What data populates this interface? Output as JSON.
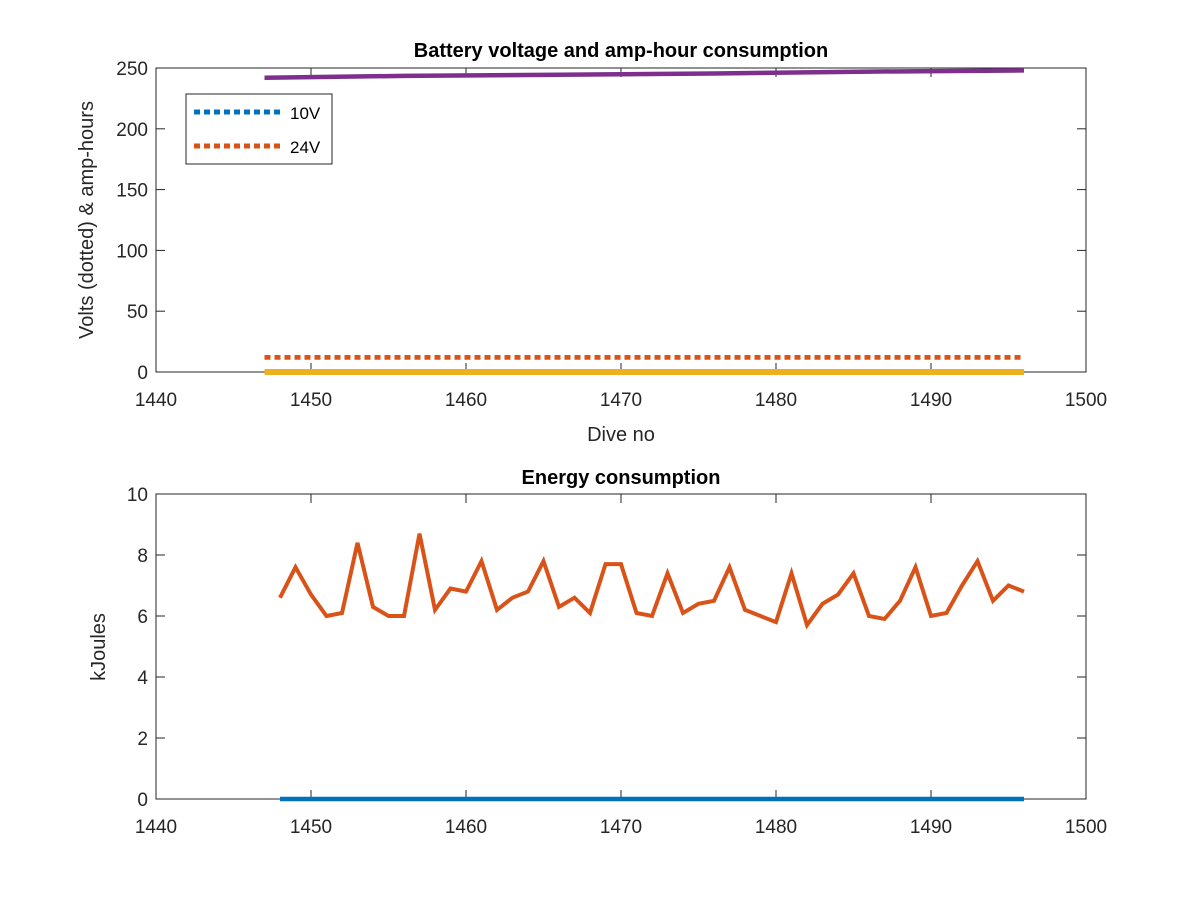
{
  "chart_data": [
    {
      "type": "line",
      "title": "Battery voltage and amp-hour consumption",
      "xlabel": "Dive no",
      "ylabel": "Volts (dotted) & amp-hours",
      "xlim": [
        1440,
        1500
      ],
      "ylim": [
        0,
        250
      ],
      "xticks": [
        "1440",
        "1450",
        "1460",
        "1470",
        "1480",
        "1490",
        "1500"
      ],
      "yticks": [
        "0",
        "50",
        "100",
        "150",
        "200",
        "250"
      ],
      "grid": false,
      "legend_position": "top-left",
      "legend": [
        "10V",
        "24V"
      ],
      "colors": {
        "10V": "#0072BD",
        "24V": "#D95319",
        "amp_hours_24V": "#7E2F8E",
        "amp_hours_10V": "#EDB120"
      },
      "series": [
        {
          "name": "10V",
          "style": "dotted",
          "x": [
            1447,
            1496
          ],
          "y": [
            12,
            12
          ]
        },
        {
          "name": "24V",
          "style": "dotted",
          "x": [
            1447,
            1496
          ],
          "y": [
            12,
            12
          ]
        },
        {
          "style": "solid",
          "x": [
            1447,
            1456,
            1466,
            1476,
            1486,
            1496
          ],
          "y": [
            242,
            243.5,
            244.5,
            245.5,
            247,
            248
          ]
        },
        {
          "style": "solid",
          "x": [
            1447,
            1496
          ],
          "y": [
            0,
            0
          ]
        }
      ]
    },
    {
      "type": "line",
      "title": "Energy consumption",
      "xlabel": "",
      "ylabel": "kJoules",
      "xlim": [
        1440,
        1500
      ],
      "ylim": [
        0,
        10
      ],
      "xticks": [
        "1440",
        "1450",
        "1460",
        "1470",
        "1480",
        "1490",
        "1500"
      ],
      "yticks": [
        "0",
        "2",
        "4",
        "6",
        "8",
        "10"
      ],
      "grid": false,
      "colors": {
        "energy": "#D95319",
        "baseline": "#0072BD"
      },
      "series": [
        {
          "style": "solid",
          "x": [
            1448,
            1449,
            1450,
            1451,
            1452,
            1453,
            1454,
            1455,
            1456,
            1457,
            1458,
            1459,
            1460,
            1461,
            1462,
            1463,
            1464,
            1465,
            1466,
            1467,
            1468,
            1469,
            1470,
            1471,
            1472,
            1473,
            1474,
            1475,
            1476,
            1477,
            1478,
            1479,
            1480,
            1481,
            1482,
            1483,
            1484,
            1485,
            1486,
            1487,
            1488,
            1489,
            1490,
            1491,
            1492,
            1493,
            1494,
            1495,
            1496
          ],
          "y": [
            6.6,
            7.6,
            6.7,
            6.0,
            6.1,
            8.4,
            6.3,
            6.0,
            6.0,
            8.7,
            6.2,
            6.9,
            6.8,
            7.8,
            6.2,
            6.6,
            6.8,
            7.8,
            6.3,
            6.6,
            6.1,
            7.7,
            7.7,
            6.1,
            6.0,
            7.4,
            6.1,
            6.4,
            6.5,
            7.6,
            6.2,
            6.0,
            5.8,
            7.4,
            5.7,
            6.4,
            6.7,
            7.4,
            6.0,
            5.9,
            6.5,
            7.6,
            6.0,
            6.1,
            7.0,
            7.8,
            6.5,
            7.0,
            6.8
          ]
        },
        {
          "style": "solid",
          "x": [
            1448,
            1496
          ],
          "y": [
            0,
            0
          ]
        }
      ]
    }
  ]
}
